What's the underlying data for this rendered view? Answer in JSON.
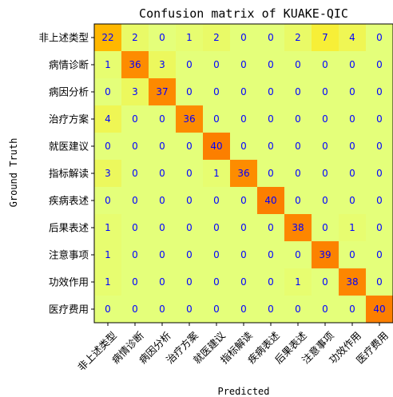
{
  "chart_data": {
    "type": "heatmap",
    "title": "Confusion matrix of KUAKE-QIC",
    "xlabel": "Predicted",
    "ylabel": "Ground Truth",
    "labels": [
      "非上述类型",
      "病情诊断",
      "病因分析",
      "治疗方案",
      "就医建议",
      "指标解读",
      "疾病表述",
      "后果表述",
      "注意事项",
      "功效作用",
      "医疗费用"
    ],
    "matrix": [
      [
        22,
        2,
        0,
        1,
        2,
        0,
        0,
        2,
        7,
        4,
        0
      ],
      [
        1,
        36,
        3,
        0,
        0,
        0,
        0,
        0,
        0,
        0,
        0
      ],
      [
        0,
        3,
        37,
        0,
        0,
        0,
        0,
        0,
        0,
        0,
        0
      ],
      [
        4,
        0,
        0,
        36,
        0,
        0,
        0,
        0,
        0,
        0,
        0
      ],
      [
        0,
        0,
        0,
        0,
        40,
        0,
        0,
        0,
        0,
        0,
        0
      ],
      [
        3,
        0,
        0,
        0,
        1,
        36,
        0,
        0,
        0,
        0,
        0
      ],
      [
        0,
        0,
        0,
        0,
        0,
        0,
        40,
        0,
        0,
        0,
        0
      ],
      [
        1,
        0,
        0,
        0,
        0,
        0,
        0,
        38,
        0,
        1,
        0
      ],
      [
        1,
        0,
        0,
        0,
        0,
        0,
        0,
        0,
        39,
        0,
        0
      ],
      [
        1,
        0,
        0,
        0,
        0,
        0,
        0,
        1,
        0,
        38,
        0
      ],
      [
        0,
        0,
        0,
        0,
        0,
        0,
        0,
        0,
        0,
        0,
        40
      ]
    ],
    "vmin": 0,
    "vmax": 40,
    "colormap": "Wistia",
    "colormap_stops": [
      "#e4ff7a",
      "#ffe81a",
      "#ffbd00",
      "#ffa000",
      "#fc7f00"
    ],
    "cell_text_color": "#0000ff",
    "grid": false
  }
}
